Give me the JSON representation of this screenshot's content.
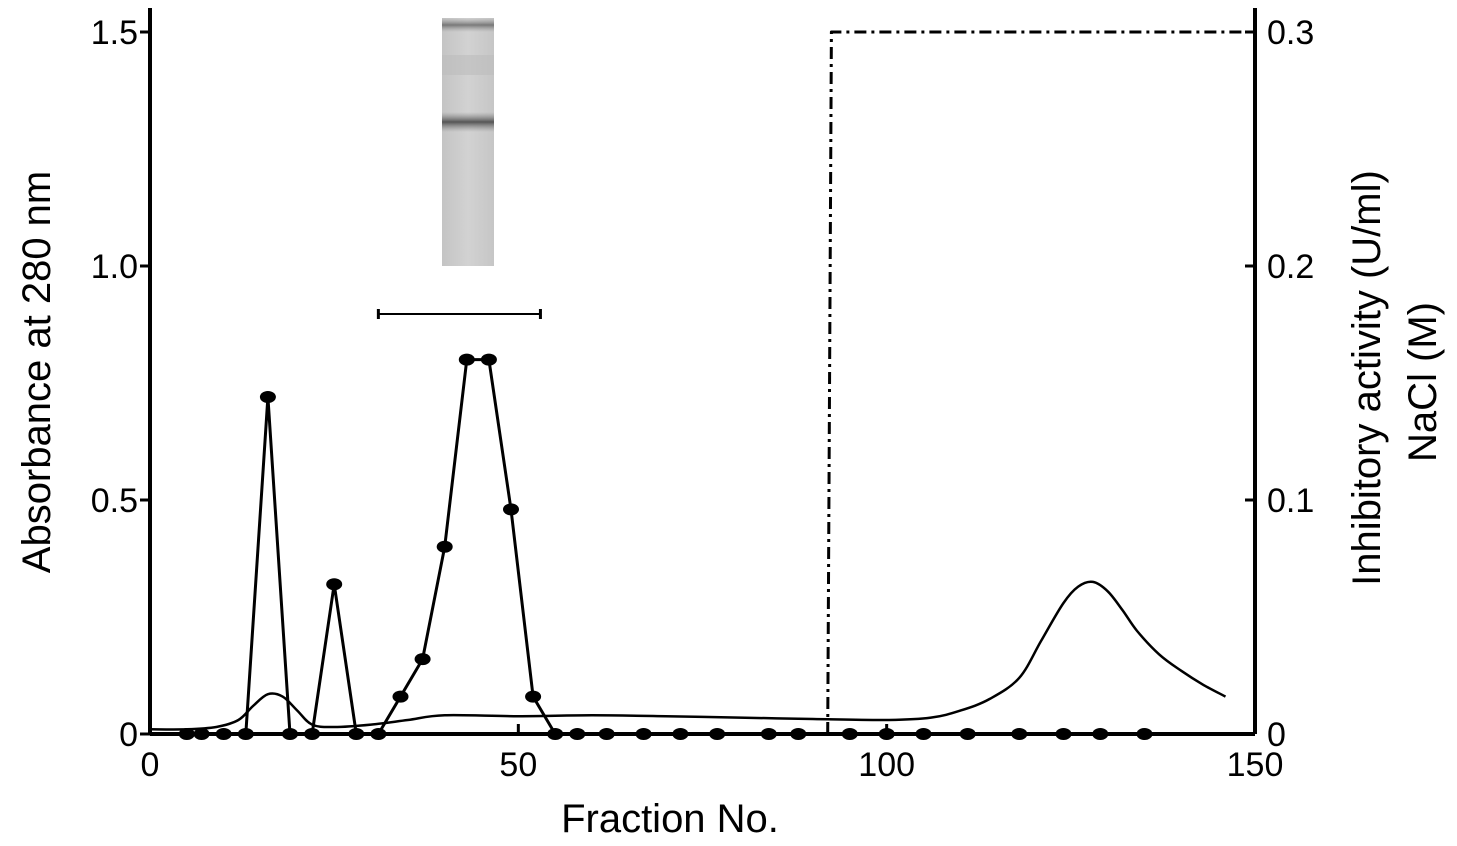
{
  "chart_data": {
    "type": "line",
    "xlabel": "Fraction  No.",
    "ylabel": "Absorbance at 280 nm",
    "y2label_lines": [
      "Inhibitory activity (U/ml)",
      "NaCl (M)"
    ],
    "xlim": [
      0,
      150
    ],
    "ylim": [
      0,
      1.5
    ],
    "y2lim": [
      0,
      0.3
    ],
    "x_ticks": [
      0,
      50,
      100,
      150
    ],
    "x_tick_labels": [
      "0",
      "50",
      "100",
      "150"
    ],
    "y_ticks": [
      0,
      0.5,
      1.0,
      1.5
    ],
    "y_tick_labels": [
      "0",
      "0.5",
      "1.0",
      "1.5"
    ],
    "y2_ticks": [
      0,
      0.1,
      0.2,
      0.3
    ],
    "y2_tick_labels": [
      "0",
      "0.1",
      "0.2",
      "0.3"
    ],
    "grid": false,
    "series": [
      {
        "style": "line-with-circle-markers",
        "x": [
          5,
          7,
          10,
          13,
          16,
          19,
          22,
          25,
          28,
          31,
          34,
          37,
          40,
          43,
          46,
          49,
          52,
          55,
          58,
          62,
          67,
          72,
          77,
          84,
          88,
          95,
          100,
          105,
          111,
          118,
          124,
          129,
          135
        ],
        "y": [
          0,
          0,
          0,
          0,
          0.72,
          0,
          0,
          0.32,
          0,
          0,
          0.08,
          0.16,
          0.4,
          0.8,
          0.8,
          0.48,
          0.08,
          0,
          0,
          0,
          0,
          0,
          0,
          0,
          0,
          0,
          0,
          0,
          0,
          0,
          0,
          0,
          0
        ]
      },
      {
        "style": "smooth-line",
        "x": [
          0,
          5,
          9,
          12,
          14,
          16,
          18,
          20,
          22,
          25,
          30,
          35,
          40,
          50,
          60,
          70,
          80,
          90,
          100,
          106,
          110,
          114,
          118,
          121,
          124,
          126,
          128,
          130,
          132,
          134,
          137,
          140,
          143,
          146
        ],
        "y": [
          0.01,
          0.01,
          0.015,
          0.03,
          0.06,
          0.085,
          0.08,
          0.05,
          0.02,
          0.015,
          0.02,
          0.03,
          0.04,
          0.038,
          0.04,
          0.038,
          0.035,
          0.032,
          0.03,
          0.035,
          0.05,
          0.075,
          0.12,
          0.2,
          0.28,
          0.315,
          0.325,
          0.305,
          0.265,
          0.22,
          0.17,
          0.135,
          0.105,
          0.08
        ]
      },
      {
        "style": "dash-dot",
        "axis": "right",
        "x": [
          92,
          92.5,
          150
        ],
        "y": [
          0,
          0.3,
          0.3
        ]
      }
    ],
    "pooled_fractions": [
      31,
      53
    ]
  }
}
